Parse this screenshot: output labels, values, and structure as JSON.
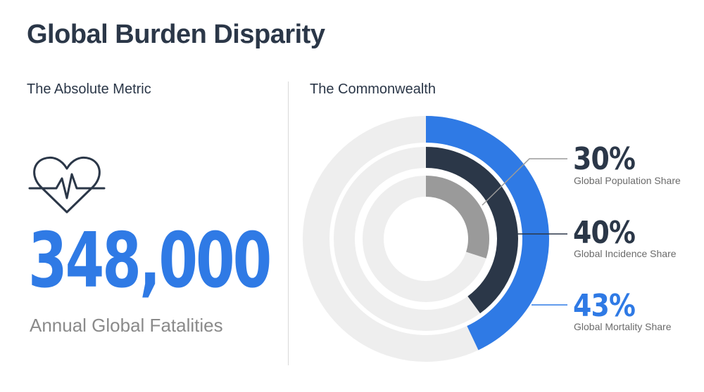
{
  "page": {
    "title": "Global Burden Disparity"
  },
  "left_panel": {
    "heading": "The Absolute Metric",
    "icon": "heartbeat-icon",
    "value": "348,000",
    "value_label": "Annual Global Fatalities"
  },
  "right_panel": {
    "heading": "The Commonwealth"
  },
  "colors": {
    "accent_blue": "#2f7ae5",
    "dark_navy": "#2b3748",
    "mid_gray": "#9a9a9a",
    "track_gray": "#eeeeee"
  },
  "chart_data": {
    "type": "radial-bar",
    "series": [
      {
        "name": "Global Population Share",
        "value": 30,
        "label": "30%",
        "color": "#9a9a9a",
        "ring": "inner"
      },
      {
        "name": "Global Incidence Share",
        "value": 40,
        "label": "40%",
        "color": "#2b3748",
        "ring": "middle"
      },
      {
        "name": "Global Mortality Share",
        "value": 43,
        "label": "43%",
        "color": "#2f7ae5",
        "ring": "outer"
      }
    ],
    "max": 100
  }
}
